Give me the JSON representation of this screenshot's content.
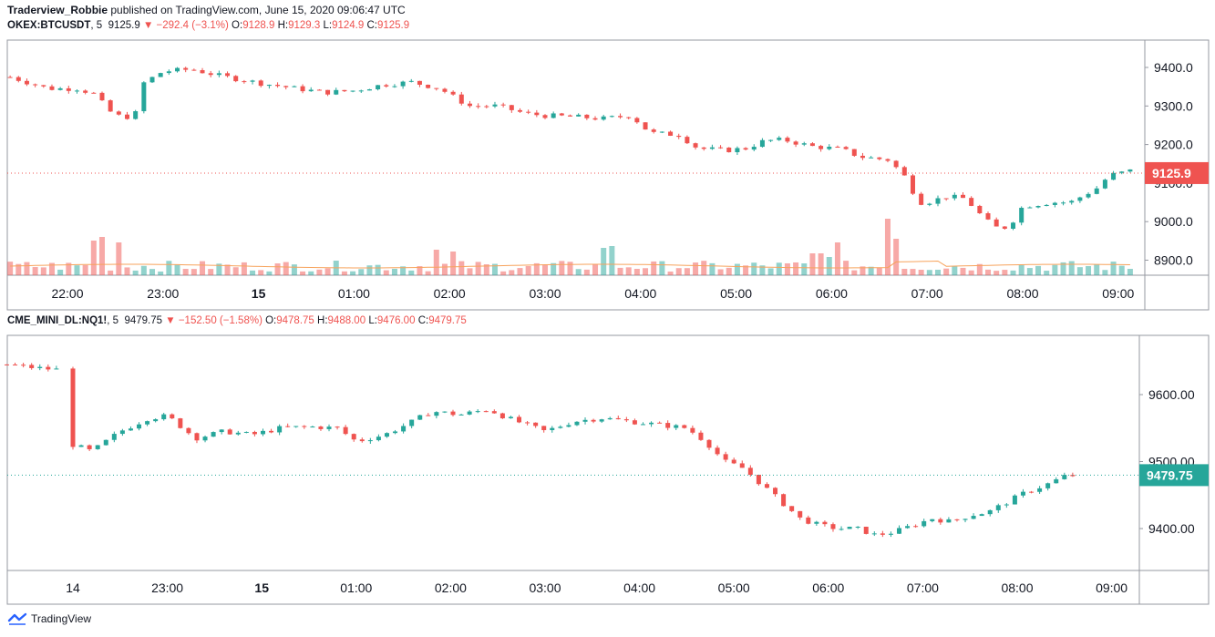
{
  "publisher": {
    "author": "Traderview_Robbie",
    "text": " published on TradingView.com, June 15, 2020 09:06:47 UTC"
  },
  "footer": {
    "brand": "TradingView"
  },
  "colors": {
    "up": "#26a69a",
    "down": "#ef5350",
    "ma": "#f7a35c",
    "grid": "#e0e3eb",
    "border": "#9598a1"
  },
  "chart_data": [
    {
      "type": "candlestick",
      "symbol": "OKEX:BTCUSDT",
      "interval": "5",
      "last": "9125.9",
      "change": "−292.4",
      "change_pct": "(−3.1%)",
      "ohlc": {
        "O": "9128.9",
        "H": "9129.3",
        "L": "9124.9",
        "C": "9125.9"
      },
      "price_badge": "9125.9",
      "y_ticks": [
        "9400.0",
        "9300.0",
        "9200.0",
        "9100.0",
        "9000.0",
        "8900.0"
      ],
      "ylim": [
        8860,
        9470
      ],
      "x_ticks": [
        "22:00",
        "23:00",
        "15",
        "01:00",
        "02:00",
        "03:00",
        "04:00",
        "05:00",
        "06:00",
        "07:00",
        "08:00",
        "09:00"
      ],
      "bold_tick": "15",
      "xlim": [
        -0.8,
        11.45
      ],
      "x_unit": "hours from 22:00 (June 14)",
      "path": [
        [
          -0.6,
          9375
        ],
        [
          -0.2,
          9345
        ],
        [
          0.1,
          9345
        ],
        [
          0.3,
          9330
        ],
        [
          0.4,
          9295
        ],
        [
          0.5,
          9275
        ],
        [
          0.7,
          9270
        ],
        [
          0.8,
          9360
        ],
        [
          1.0,
          9390
        ],
        [
          1.3,
          9395
        ],
        [
          1.6,
          9378
        ],
        [
          2.0,
          9360
        ],
        [
          2.4,
          9345
        ],
        [
          2.7,
          9335
        ],
        [
          3.0,
          9340
        ],
        [
          3.3,
          9355
        ],
        [
          3.6,
          9362
        ],
        [
          3.9,
          9345
        ],
        [
          4.2,
          9300
        ],
        [
          4.5,
          9300
        ],
        [
          4.8,
          9280
        ],
        [
          5.0,
          9275
        ],
        [
          5.3,
          9272
        ],
        [
          5.6,
          9267
        ],
        [
          5.9,
          9275
        ],
        [
          6.1,
          9230
        ],
        [
          6.4,
          9225
        ],
        [
          6.6,
          9190
        ],
        [
          6.9,
          9185
        ],
        [
          7.1,
          9190
        ],
        [
          7.3,
          9210
        ],
        [
          7.5,
          9212
        ],
        [
          7.8,
          9195
        ],
        [
          8.1,
          9188
        ],
        [
          8.3,
          9168
        ],
        [
          8.6,
          9160
        ],
        [
          8.8,
          9108
        ],
        [
          8.9,
          9050
        ],
        [
          9.0,
          9050
        ],
        [
          9.2,
          9065
        ],
        [
          9.4,
          9060
        ],
        [
          9.55,
          9020
        ],
        [
          9.7,
          8985
        ],
        [
          9.85,
          8985
        ],
        [
          10.0,
          9040
        ],
        [
          10.3,
          9050
        ],
        [
          10.5,
          9050
        ],
        [
          10.8,
          9090
        ],
        [
          10.9,
          9120
        ],
        [
          11.1,
          9130
        ],
        [
          11.3,
          9145
        ],
        [
          11.45,
          9138
        ],
        [
          11.6,
          9130
        ],
        [
          11.8,
          9125
        ]
      ],
      "volume_ma_level": "low, roughly flat"
    },
    {
      "type": "candlestick",
      "symbol": "CME_MINI_DL:NQ1!",
      "interval": "5",
      "last": "9479.75",
      "change": "−152.50",
      "change_pct": "(−1.58%)",
      "ohlc": {
        "O": "9478.75",
        "H": "9488.00",
        "L": "9476.00",
        "C": "9479.75"
      },
      "price_badge": "9479.75",
      "y_ticks": [
        "9600.00",
        "9500.00",
        "9400.00"
      ],
      "ylim": [
        9340,
        9690
      ],
      "x_ticks": [
        "14",
        "23:00",
        "15",
        "01:00",
        "02:00",
        "03:00",
        "04:00",
        "05:00",
        "06:00",
        "07:00",
        "08:00",
        "09:00"
      ],
      "bold_tick": "15",
      "path": [
        [
          -0.7,
          9645
        ],
        [
          -0.4,
          9640
        ],
        [
          -0.15,
          9637
        ],
        [
          0.0,
          9525
        ],
        [
          0.2,
          9515
        ],
        [
          0.5,
          9545
        ],
        [
          0.8,
          9565
        ],
        [
          1.0,
          9568
        ],
        [
          1.3,
          9535
        ],
        [
          1.6,
          9545
        ],
        [
          1.9,
          9540
        ],
        [
          2.2,
          9550
        ],
        [
          2.5,
          9552
        ],
        [
          2.8,
          9550
        ],
        [
          3.0,
          9530
        ],
        [
          3.3,
          9540
        ],
        [
          3.6,
          9560
        ],
        [
          3.8,
          9575
        ],
        [
          4.1,
          9570
        ],
        [
          4.4,
          9578
        ],
        [
          4.6,
          9565
        ],
        [
          4.8,
          9555
        ],
        [
          5.0,
          9545
        ],
        [
          5.3,
          9560
        ],
        [
          5.6,
          9565
        ],
        [
          5.9,
          9560
        ],
        [
          6.2,
          9555
        ],
        [
          6.5,
          9550
        ],
        [
          6.7,
          9530
        ],
        [
          6.9,
          9500
        ],
        [
          7.1,
          9490
        ],
        [
          7.3,
          9465
        ],
        [
          7.5,
          9440
        ],
        [
          7.7,
          9415
        ],
        [
          7.9,
          9405
        ],
        [
          8.1,
          9400
        ],
        [
          8.3,
          9400
        ],
        [
          8.5,
          9390
        ],
        [
          8.7,
          9395
        ],
        [
          8.9,
          9405
        ],
        [
          9.1,
          9415
        ],
        [
          9.3,
          9410
        ],
        [
          9.5,
          9420
        ],
        [
          9.7,
          9425
        ],
        [
          9.9,
          9440
        ],
        [
          10.1,
          9455
        ],
        [
          10.3,
          9465
        ],
        [
          10.5,
          9478
        ],
        [
          10.65,
          9480
        ]
      ]
    }
  ]
}
